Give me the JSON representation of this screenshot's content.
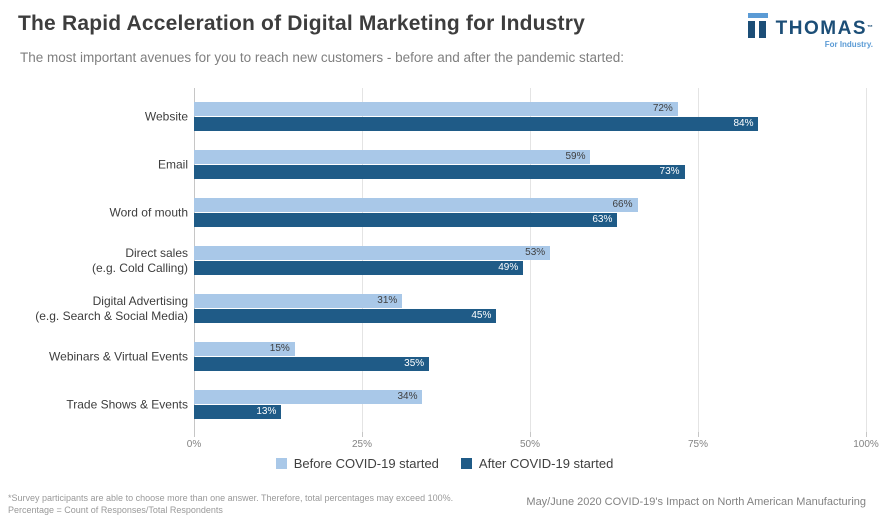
{
  "header": {
    "title": "The Rapid Acceleration of Digital Marketing for Industry",
    "subtitle": "The most important avenues for you to reach new customers - before and after the pandemic started:"
  },
  "logo": {
    "name": "THOMAS",
    "trademark": "™",
    "tagline": "For Industry.",
    "dark_color": "#1c4e77",
    "light_color": "#5b9bd5"
  },
  "chart_data": {
    "type": "bar",
    "orientation": "horizontal",
    "categories": [
      [
        "Website"
      ],
      [
        "Email"
      ],
      [
        "Word of mouth"
      ],
      [
        "Direct sales",
        "(e.g. Cold Calling)"
      ],
      [
        "Digital Advertising",
        "(e.g. Search & Social Media)"
      ],
      [
        "Webinars & Virtual Events"
      ],
      [
        "Trade Shows & Events"
      ]
    ],
    "series": [
      {
        "name": "Before COVID-19 started",
        "color": "#a9c8e8",
        "label_color": "#3f3f3f",
        "values": [
          72,
          59,
          66,
          53,
          31,
          15,
          34
        ]
      },
      {
        "name": "After COVID-19 started",
        "color": "#1f5b87",
        "label_color": "#ffffff",
        "values": [
          84,
          73,
          63,
          49,
          45,
          35,
          13
        ]
      }
    ],
    "value_suffix": "%",
    "xlim": [
      0,
      100
    ],
    "x_tick_values": [
      0,
      25,
      50,
      75,
      100
    ],
    "x_tick_labels": [
      "0%",
      "25%",
      "50%",
      "75%",
      "100%"
    ],
    "grid": "vertical",
    "gridline_color": "#e4e4e4",
    "axis_color": "#c6c6c6",
    "legend_position": "bottom-center"
  },
  "footer": {
    "note_line1": "*Survey participants are able to choose more than one answer. Therefore, total percentages may exceed 100%.",
    "note_line2": "Percentage = Count of Responses/Total Respondents",
    "source": "May/June 2020 COVID-19's Impact on North American Manufacturing"
  }
}
